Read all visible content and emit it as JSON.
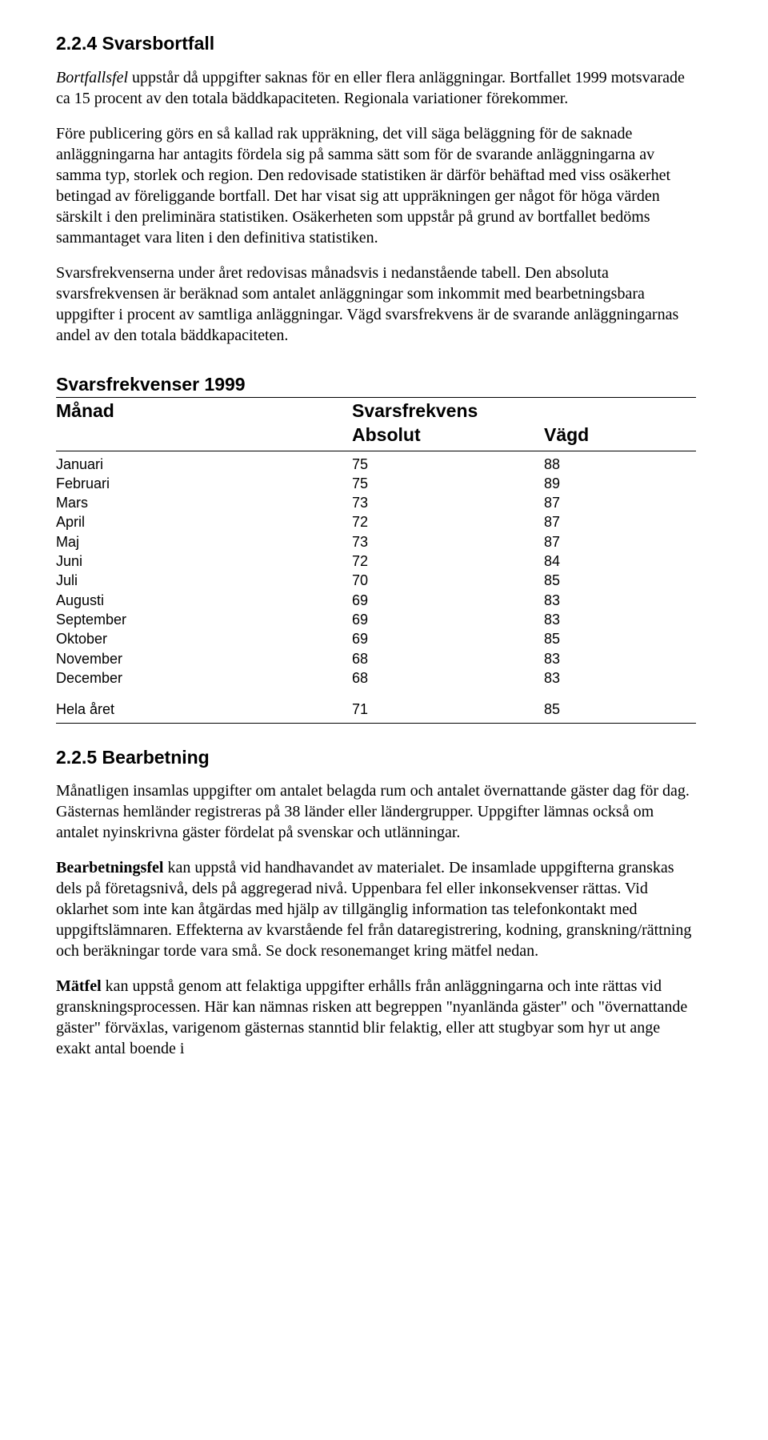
{
  "section1": {
    "heading": "2.2.4 Svarsbortfall",
    "p1_prefix_italic": "Bortfallsfel",
    "p1_rest": " uppstår då uppgifter saknas för en eller flera anläggningar. Bortfallet 1999 motsvarade ca 15 procent av den totala bäddkapaciteten. Regionala variationer förekommer.",
    "p2": "Före publicering görs en så kallad rak uppräkning, det vill säga beläggning för de saknade anläggningarna har antagits fördela sig på samma sätt som för de svarande anläggningarna av samma typ, storlek och region. Den redovisade statistiken är därför behäftad med viss osäkerhet betingad av föreliggande bortfall. Det har visat sig att uppräkningen ger något för höga värden särskilt i den preliminära statistiken. Osäkerheten som uppstår på grund av bortfallet bedöms sammantaget vara liten i den definitiva statistiken.",
    "p3": "Svarsfrekvenserna under året redovisas månadsvis i nedanstående tabell. Den absoluta svarsfrekvensen är beräknad som antalet anläggningar som inkommit med bearbetningsbara uppgifter i procent av samtliga anläggningar. Vägd svarsfrekvens är de svarande anläggningarnas andel av den totala bäddkapaciteten."
  },
  "table": {
    "title": "Svarsfrekvenser 1999",
    "col_month": "Månad",
    "col_freq": "Svarsfrekvens",
    "sub_abs": "Absolut",
    "sub_wgt": "Vägd",
    "rows": [
      {
        "m": "Januari",
        "a": "75",
        "w": "88"
      },
      {
        "m": "Februari",
        "a": "75",
        "w": "89"
      },
      {
        "m": "Mars",
        "a": "73",
        "w": "87"
      },
      {
        "m": "April",
        "a": "72",
        "w": "87"
      },
      {
        "m": "Maj",
        "a": "73",
        "w": "87"
      },
      {
        "m": "Juni",
        "a": "72",
        "w": "84"
      },
      {
        "m": "Juli",
        "a": "70",
        "w": "85"
      },
      {
        "m": "Augusti",
        "a": "69",
        "w": "83"
      },
      {
        "m": "September",
        "a": "69",
        "w": "83"
      },
      {
        "m": "Oktober",
        "a": "69",
        "w": "85"
      },
      {
        "m": "November",
        "a": "68",
        "w": "83"
      },
      {
        "m": "December",
        "a": "68",
        "w": "83"
      }
    ],
    "total": {
      "m": "Hela året",
      "a": "71",
      "w": "85"
    }
  },
  "section2": {
    "heading": "2.2.5 Bearbetning",
    "p1": "Månatligen insamlas uppgifter om antalet belagda rum och antalet övernattande gäster dag för dag. Gästernas hemländer registreras på 38 länder eller ländergrupper. Uppgifter lämnas också om antalet nyinskrivna gäster fördelat på svenskar och utlänningar.",
    "p2_bold": "Bearbetningsfel",
    "p2_rest": " kan uppstå vid handhavandet av materialet. De insamlade uppgifterna granskas dels på företagsnivå, dels på aggregerad nivå. Uppenbara fel eller inkonsekvenser rättas. Vid oklarhet som inte kan åtgärdas med hjälp av tillgänglig information tas telefonkontakt med uppgiftslämnaren. Effekterna av kvarstående fel från dataregistrering, kodning, granskning/rättning och beräkningar torde vara små. Se dock resonemanget kring mätfel nedan.",
    "p3_bold": "Mätfel",
    "p3_rest": " kan uppstå genom att felaktiga uppgifter erhålls från anläggningarna och inte rättas vid granskningsprocessen. Här kan nämnas risken att begreppen \"nyanlända gäster\" och \"övernattande gäster\" förväxlas, varigenom gästernas stanntid blir felaktig, eller att stugbyar som hyr ut ange exakt antal boende i"
  }
}
